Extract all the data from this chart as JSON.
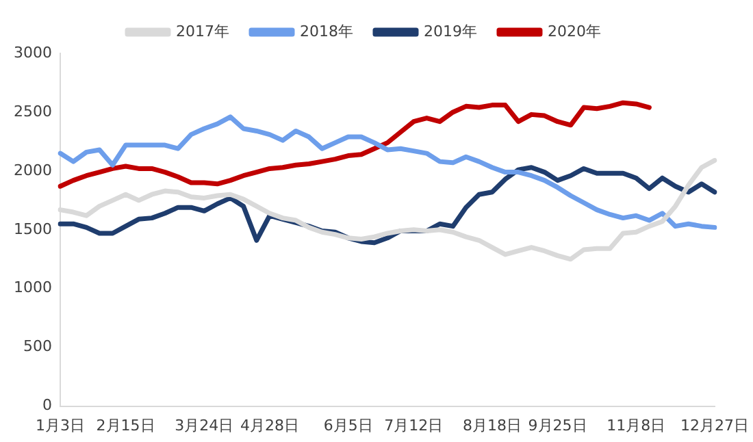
{
  "chart_data": {
    "type": "line",
    "categories": [
      "1月3日",
      null,
      null,
      null,
      null,
      "2月15日",
      null,
      null,
      null,
      null,
      null,
      "3月24日",
      null,
      null,
      null,
      null,
      "4月28日",
      null,
      null,
      null,
      null,
      null,
      "6月5日",
      null,
      null,
      null,
      null,
      "7月12日",
      null,
      null,
      null,
      null,
      null,
      "8月18日",
      null,
      null,
      null,
      null,
      "9月25日",
      null,
      null,
      null,
      null,
      null,
      "11月8日",
      null,
      null,
      null,
      null,
      null,
      "12月27日"
    ],
    "series": [
      {
        "name": "2017年",
        "color": "#d9d9d9",
        "values": [
          1670,
          1650,
          1620,
          1700,
          1750,
          1800,
          1750,
          1800,
          1830,
          1820,
          1780,
          1770,
          1790,
          1800,
          1760,
          1700,
          1640,
          1600,
          1580,
          1520,
          1480,
          1460,
          1430,
          1420,
          1440,
          1470,
          1490,
          1500,
          1490,
          1500,
          1480,
          1440,
          1410,
          1350,
          1290,
          1320,
          1350,
          1320,
          1280,
          1250,
          1330,
          1340,
          1340,
          1470,
          1480,
          1530,
          1570,
          1700,
          1880,
          2030,
          2090
        ]
      },
      {
        "name": "2018年",
        "color": "#6d9eeb",
        "values": [
          2150,
          2080,
          2160,
          2180,
          2050,
          2220,
          2220,
          2220,
          2220,
          2190,
          2310,
          2360,
          2400,
          2460,
          2360,
          2340,
          2310,
          2260,
          2340,
          2290,
          2190,
          2240,
          2290,
          2290,
          2240,
          2180,
          2190,
          2170,
          2150,
          2080,
          2070,
          2120,
          2080,
          2030,
          1990,
          1990,
          1960,
          1920,
          1860,
          1790,
          1730,
          1670,
          1630,
          1600,
          1620,
          1580,
          1640,
          1530,
          1550,
          1530,
          1520
        ]
      },
      {
        "name": "2019年",
        "color": "#1f3d6e",
        "values": [
          1550,
          1550,
          1520,
          1470,
          1470,
          1530,
          1590,
          1600,
          1640,
          1690,
          1690,
          1660,
          1720,
          1770,
          1700,
          1410,
          1620,
          1590,
          1560,
          1530,
          1490,
          1480,
          1430,
          1400,
          1390,
          1430,
          1490,
          1490,
          1490,
          1550,
          1530,
          1690,
          1800,
          1820,
          1930,
          2010,
          2030,
          1990,
          1920,
          1960,
          2020,
          1980,
          1980,
          1980,
          1940,
          1850,
          1940,
          1870,
          1820,
          1890,
          1820
        ]
      },
      {
        "name": "2020年",
        "color": "#c00000",
        "values": [
          1870,
          1920,
          1960,
          1990,
          2020,
          2040,
          2020,
          2020,
          1990,
          1950,
          1900,
          1900,
          1890,
          1920,
          1960,
          1990,
          2020,
          2030,
          2050,
          2060,
          2080,
          2100,
          2130,
          2140,
          2190,
          2240,
          2330,
          2420,
          2450,
          2420,
          2500,
          2550,
          2540,
          2560,
          2560,
          2420,
          2480,
          2470,
          2420,
          2390,
          2540,
          2530,
          2550,
          2580,
          2570,
          2540,
          null,
          null,
          null,
          null,
          null
        ]
      }
    ],
    "ylim": [
      0,
      3000
    ],
    "yticks": [
      0,
      500,
      1000,
      1500,
      2000,
      2500,
      3000
    ],
    "grid": false,
    "legend": "top",
    "marker": "none",
    "line_style": "solid"
  }
}
